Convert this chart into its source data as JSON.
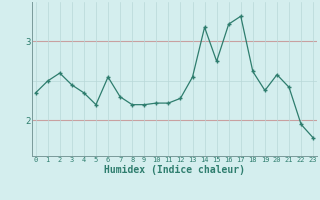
{
  "x": [
    0,
    1,
    2,
    3,
    4,
    5,
    6,
    7,
    8,
    9,
    10,
    11,
    12,
    13,
    14,
    15,
    16,
    17,
    18,
    19,
    20,
    21,
    22,
    23
  ],
  "y": [
    2.35,
    2.5,
    2.6,
    2.45,
    2.35,
    2.2,
    2.55,
    2.3,
    2.2,
    2.2,
    2.22,
    2.22,
    2.28,
    2.55,
    3.18,
    2.75,
    3.22,
    3.32,
    2.62,
    2.38,
    2.58,
    2.42,
    1.95,
    1.78
  ],
  "line_color": "#2e7d6e",
  "marker": "+",
  "marker_size": 3.5,
  "bg_color": "#d4eeee",
  "grid_color_major": "#c8a0a0",
  "grid_color_minor": "#b8d8d8",
  "xlabel": "Humidex (Indice chaleur)",
  "xlabel_fontsize": 7,
  "ytick_labels": [
    "2",
    "3"
  ],
  "ytick_positions": [
    2,
    3
  ],
  "ylim": [
    1.55,
    3.5
  ],
  "xlim": [
    -0.3,
    23.3
  ],
  "figwidth": 3.2,
  "figheight": 2.0,
  "dpi": 100
}
